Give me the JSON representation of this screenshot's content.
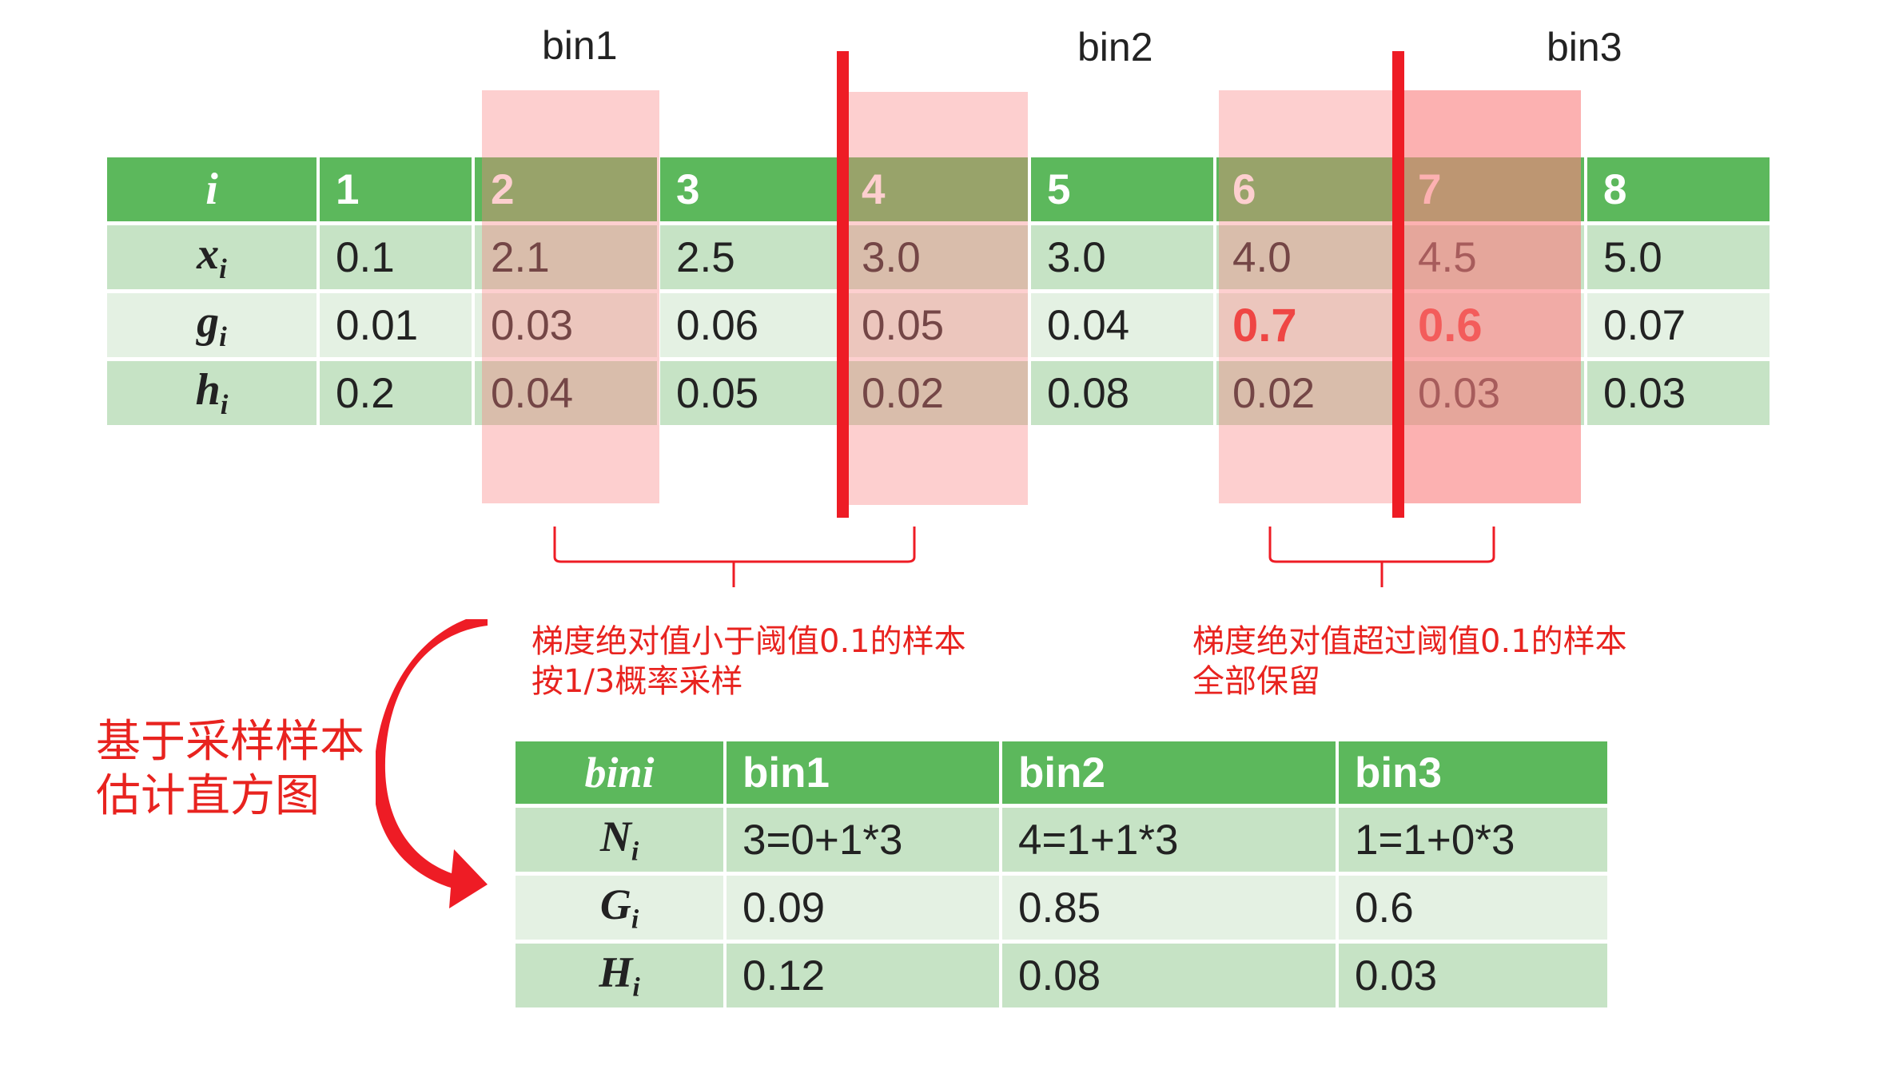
{
  "bins": [
    "bin1",
    "bin2",
    "bin3"
  ],
  "top_table": {
    "header": {
      "label": "i",
      "values": [
        "1",
        "2",
        "3",
        "4",
        "5",
        "6",
        "7",
        "8"
      ]
    },
    "rows": [
      {
        "label": "x",
        "sub": "i",
        "values": [
          "0.1",
          "2.1",
          "2.5",
          "3.0",
          "3.0",
          "4.0",
          "4.5",
          "5.0"
        ]
      },
      {
        "label": "g",
        "sub": "i",
        "values": [
          "0.01",
          "0.03",
          "0.06",
          "0.05",
          "0.04",
          "0.7",
          "0.6",
          "0.07"
        ]
      },
      {
        "label": "h",
        "sub": "i",
        "values": [
          "0.2",
          "0.04",
          "0.05",
          "0.02",
          "0.08",
          "0.02",
          "0.03",
          "0.03"
        ]
      }
    ]
  },
  "notes": {
    "left": [
      "梯度绝对值小于阈值0.1的样本",
      "按1/3概率采样"
    ],
    "right": [
      "梯度绝对值超过阈值0.1的样本",
      "全部保留"
    ],
    "side": [
      "基于采样样本",
      "估计直方图"
    ]
  },
  "bottom_table": {
    "header": {
      "label": "bini",
      "values": [
        "bin1",
        "bin2",
        "bin3"
      ]
    },
    "rows": [
      {
        "label": "N",
        "sub": "i",
        "values": [
          "3=0+1*3",
          "4=1+1*3",
          "1=1+0*3"
        ]
      },
      {
        "label": "G",
        "sub": "i",
        "values": [
          "0.09",
          "0.85",
          "0.6"
        ]
      },
      {
        "label": "H",
        "sub": "i",
        "values": [
          "0.12",
          "0.08",
          "0.03"
        ]
      }
    ]
  },
  "colors": {
    "header_green": "#5cb85c",
    "row_green": "#c6e3c5",
    "row_light": "#e4f1e3",
    "accent_red": "#ee1c25",
    "highlight_pink": "#fa8282"
  }
}
